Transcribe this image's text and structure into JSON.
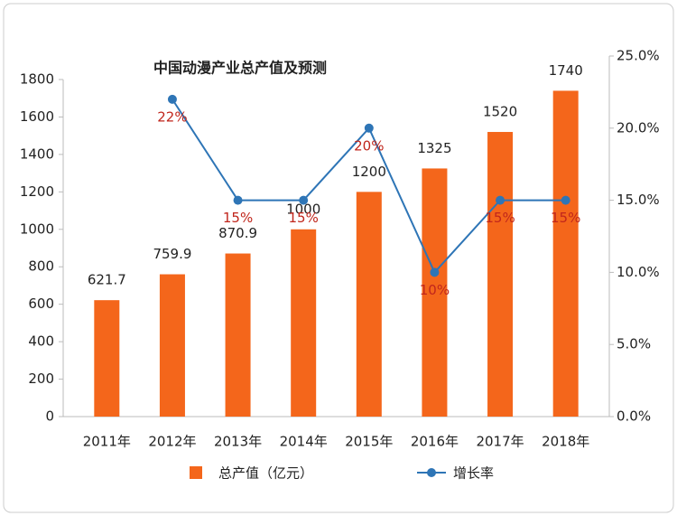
{
  "chart_data": {
    "type": "bar-line",
    "title": "中国动漫产业总产值及预测",
    "categories": [
      "2011年",
      "2012年",
      "2013年",
      "2014年",
      "2015年",
      "2016年",
      "2017年",
      "2018年"
    ],
    "series": [
      {
        "name": "总产值（亿元）",
        "type": "bar",
        "color": "#f4661b",
        "values": [
          621.7,
          759.9,
          870.9,
          1000,
          1200,
          1325,
          1520,
          1740
        ]
      },
      {
        "name": "增长率",
        "type": "line",
        "axis": "y2",
        "color": "#2e75b6",
        "values": [
          null,
          22,
          15,
          15,
          20,
          10,
          15,
          15
        ],
        "value_labels": [
          null,
          "22%",
          "15%",
          "15%",
          "20%",
          "10%",
          "15%",
          "15%"
        ]
      }
    ],
    "ylim": [
      0,
      1800
    ],
    "yticks": [
      0,
      200,
      400,
      600,
      800,
      1000,
      1200,
      1400,
      1600,
      1800
    ],
    "y2lim": [
      0,
      25
    ],
    "y2ticks": [
      {
        "value": 0,
        "label": "0.0%"
      },
      {
        "value": 5,
        "label": "5.0%"
      },
      {
        "value": 10,
        "label": "10.0%"
      },
      {
        "value": 15,
        "label": "15.0%"
      },
      {
        "value": 20,
        "label": "20.0%"
      },
      {
        "value": 25,
        "label": "25.0%"
      }
    ],
    "grid": false,
    "legend": "bottom"
  }
}
